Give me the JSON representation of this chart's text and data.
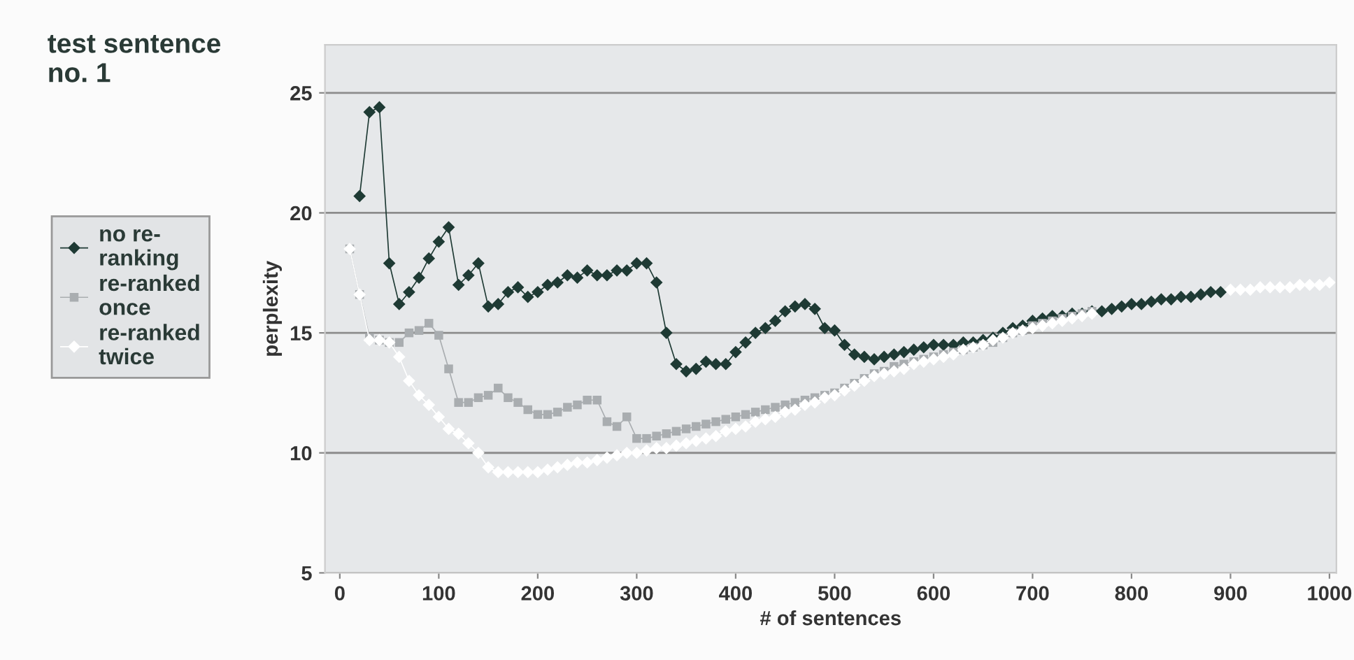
{
  "chart_data": {
    "type": "line",
    "title": "test sentence no. 1",
    "xlabel": "# of sentences",
    "ylabel": "perplexity",
    "x": [
      10,
      20,
      30,
      40,
      50,
      60,
      70,
      80,
      90,
      100,
      110,
      120,
      130,
      140,
      150,
      160,
      170,
      180,
      190,
      200,
      210,
      220,
      230,
      240,
      250,
      260,
      270,
      280,
      290,
      300,
      310,
      320,
      330,
      340,
      350,
      360,
      370,
      380,
      390,
      400,
      410,
      420,
      430,
      440,
      450,
      460,
      470,
      480,
      490,
      500,
      510,
      520,
      530,
      540,
      550,
      560,
      570,
      580,
      590,
      600,
      610,
      620,
      630,
      640,
      650,
      660,
      670,
      680,
      690,
      700,
      710,
      720,
      730,
      740,
      750,
      760,
      770,
      780,
      790,
      800,
      810,
      820,
      830,
      840,
      850,
      860,
      870,
      880,
      890,
      900,
      910,
      920,
      930,
      940,
      950,
      960,
      970,
      980,
      990,
      1000
    ],
    "series": [
      {
        "name": "no re-ranking",
        "color": "#1e3a34",
        "marker": "diamond",
        "values": [
          null,
          20.7,
          24.2,
          24.4,
          17.9,
          16.2,
          16.7,
          17.3,
          18.1,
          18.8,
          19.4,
          17.0,
          17.4,
          17.9,
          16.1,
          16.2,
          16.7,
          16.9,
          16.5,
          16.7,
          17.0,
          17.1,
          17.4,
          17.3,
          17.6,
          17.4,
          17.4,
          17.6,
          17.6,
          17.9,
          17.9,
          17.1,
          15.0,
          13.7,
          13.4,
          13.5,
          13.8,
          13.7,
          13.7,
          14.2,
          14.6,
          15.0,
          15.2,
          15.5,
          15.9,
          16.1,
          16.2,
          16.0,
          15.2,
          15.1,
          14.5,
          14.1,
          14.0,
          13.9,
          14.0,
          14.1,
          14.2,
          14.3,
          14.4,
          14.5,
          14.5,
          14.5,
          14.6,
          14.6,
          14.7,
          14.8,
          15.0,
          15.2,
          15.3,
          15.5,
          15.6,
          15.7,
          15.7,
          15.8,
          15.8,
          15.9,
          15.9,
          16.0,
          16.1,
          16.2,
          16.2,
          16.3,
          16.4,
          16.4,
          16.5,
          16.5,
          16.6,
          16.7,
          16.7,
          null,
          null,
          null,
          null,
          null,
          null,
          null,
          null,
          null,
          null,
          null
        ]
      },
      {
        "name": "re-ranked once",
        "color": "#a9adb0",
        "marker": "square",
        "values": [
          18.5,
          16.6,
          14.8,
          14.7,
          14.6,
          14.6,
          15.0,
          15.1,
          15.4,
          14.9,
          13.5,
          12.1,
          12.1,
          12.3,
          12.4,
          12.7,
          12.3,
          12.1,
          11.8,
          11.6,
          11.6,
          11.7,
          11.9,
          12.0,
          12.2,
          12.2,
          11.3,
          11.1,
          11.5,
          10.6,
          10.6,
          10.7,
          10.8,
          10.9,
          11.0,
          11.1,
          11.2,
          11.3,
          11.4,
          11.5,
          11.6,
          11.7,
          11.8,
          11.9,
          12.0,
          12.1,
          12.2,
          12.3,
          12.4,
          12.5,
          12.7,
          12.9,
          13.1,
          13.3,
          13.4,
          13.6,
          13.7,
          13.8,
          13.9,
          14.0,
          14.1,
          14.2,
          14.3,
          14.4,
          14.5,
          14.6,
          14.8,
          15.0,
          15.1,
          15.3,
          15.4,
          15.5,
          15.6,
          15.7,
          15.8,
          15.9,
          null,
          null,
          null,
          null,
          null,
          null,
          null,
          null,
          null,
          null,
          null,
          null,
          null,
          null,
          null,
          null,
          null,
          null,
          null,
          null,
          null,
          null,
          null,
          null
        ]
      },
      {
        "name": "re-ranked twice",
        "color": "#ffffff",
        "marker": "diamond",
        "values": [
          18.5,
          16.6,
          14.7,
          14.7,
          14.6,
          14.0,
          13.0,
          12.4,
          12.0,
          11.5,
          11.0,
          10.8,
          10.4,
          10.0,
          9.4,
          9.2,
          9.2,
          9.2,
          9.2,
          9.2,
          9.3,
          9.4,
          9.5,
          9.6,
          9.6,
          9.7,
          9.8,
          9.9,
          10.0,
          10.0,
          10.1,
          10.2,
          10.2,
          10.3,
          10.4,
          10.5,
          10.6,
          10.7,
          10.9,
          11.0,
          11.1,
          11.3,
          11.4,
          11.5,
          11.7,
          11.8,
          12.0,
          12.1,
          12.3,
          12.4,
          12.6,
          12.8,
          13.0,
          13.2,
          13.3,
          13.4,
          13.5,
          13.7,
          13.8,
          13.9,
          14.0,
          14.1,
          14.3,
          14.4,
          14.5,
          14.7,
          14.8,
          15.0,
          15.1,
          15.2,
          15.3,
          15.4,
          15.5,
          15.6,
          15.7,
          15.8,
          null,
          null,
          null,
          null,
          null,
          null,
          null,
          null,
          null,
          null,
          null,
          null,
          null,
          16.8,
          16.8,
          16.8,
          16.9,
          16.9,
          16.9,
          16.9,
          17.0,
          17.0,
          17.0,
          17.1
        ]
      }
    ],
    "xlim": [
      -15,
      1007
    ],
    "xticks": [
      0,
      100,
      200,
      300,
      400,
      500,
      600,
      700,
      800,
      900,
      1000
    ],
    "ylim": [
      5,
      27
    ],
    "yticks": [
      5,
      10,
      15,
      20,
      25
    ],
    "grid": "y",
    "legend": "left"
  }
}
